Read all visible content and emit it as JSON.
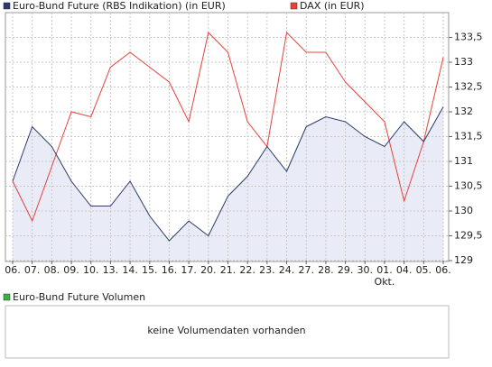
{
  "chart_data": {
    "type": "line",
    "categories": [
      "06.",
      "07.",
      "08.",
      "09.",
      "10.",
      "13.",
      "14.",
      "15.",
      "16.",
      "17.",
      "20.",
      "21.",
      "22.",
      "23.",
      "24.",
      "27.",
      "28.",
      "29.",
      "30.",
      "01.",
      "04.",
      "05.",
      "06."
    ],
    "month_labels": [
      {
        "at": 19,
        "label": "Okt."
      }
    ],
    "series": [
      {
        "name": "Euro-Bund Future (RBS Indikation) (in EUR)",
        "color": "#2b3a67",
        "fill": "#e9ebf7",
        "values": [
          130.6,
          131.7,
          131.3,
          130.6,
          130.1,
          130.1,
          130.6,
          129.9,
          129.4,
          129.8,
          129.5,
          130.3,
          130.7,
          131.3,
          130.8,
          131.7,
          131.9,
          131.8,
          131.5,
          131.3,
          131.8,
          131.4,
          132.1
        ]
      },
      {
        "name": "DAX (in EUR)",
        "color": "#e8413c",
        "values": [
          130.6,
          129.8,
          130.9,
          132.0,
          131.9,
          132.9,
          133.2,
          132.9,
          132.6,
          131.8,
          133.6,
          133.2,
          131.8,
          131.3,
          133.6,
          133.2,
          133.2,
          132.6,
          132.2,
          131.8,
          130.2,
          131.4,
          133.1
        ]
      }
    ],
    "ylim": [
      129,
      134
    ],
    "yticks": [
      129,
      {
        "value": 129.5,
        "label": "129,5"
      },
      130,
      {
        "value": 130.5,
        "label": "130,5"
      },
      131,
      {
        "value": 131.5,
        "label": "131,5"
      },
      132,
      {
        "value": 132.5,
        "label": "132,5"
      },
      133,
      {
        "value": 133.5,
        "label": "133,5"
      }
    ],
    "grid": true,
    "volume_panel": {
      "legend": {
        "name": "Euro-Bund Future Volumen",
        "color": "#3cb043"
      },
      "message": "keine Volumendaten vorhanden"
    }
  }
}
